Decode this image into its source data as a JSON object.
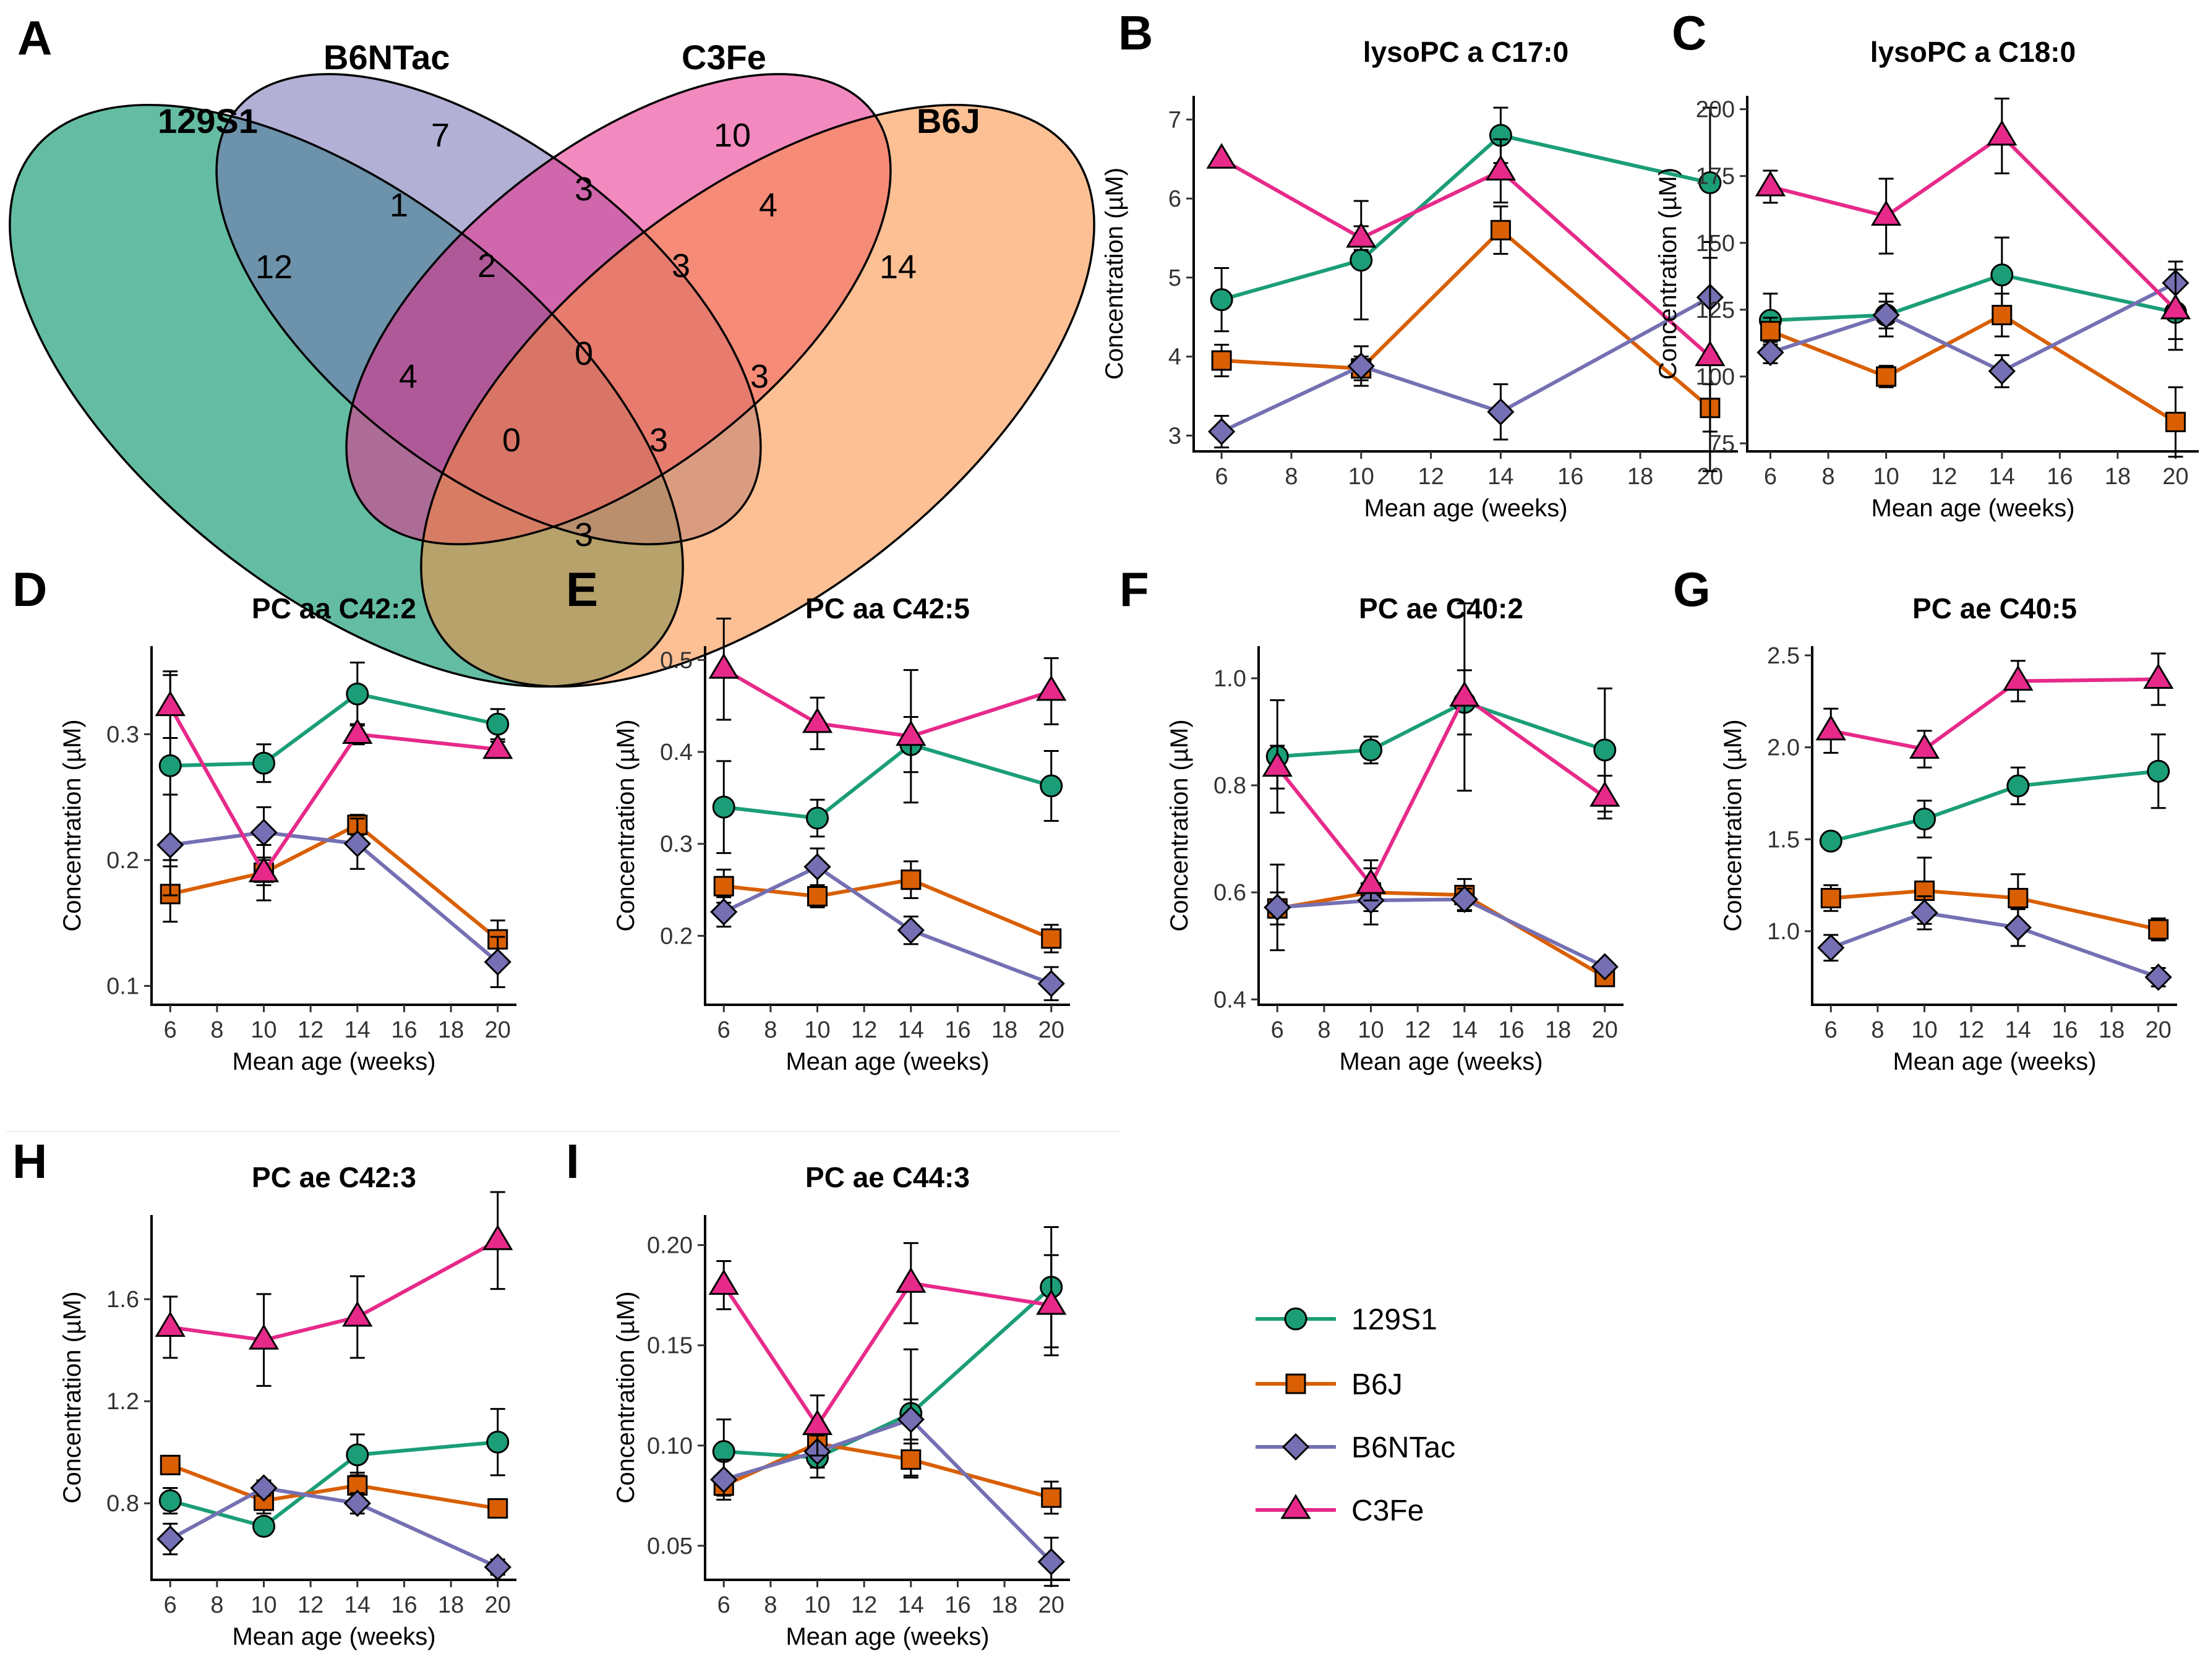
{
  "strains": [
    {
      "id": "129S1",
      "name": "129S1",
      "color": "#1b9e77",
      "shape": "circle"
    },
    {
      "id": "B6J",
      "name": "B6J",
      "color": "#d95f02",
      "shape": "square"
    },
    {
      "id": "B6NTac",
      "name": "B6NTac",
      "color": "#7570b3",
      "shape": "diamond"
    },
    {
      "id": "C3Fe",
      "name": "C3Fe",
      "color": "#e7298a",
      "shape": "triangle"
    }
  ],
  "venn": {
    "letter": "A",
    "sets": [
      {
        "name": "129S1",
        "color": "#1b9e77"
      },
      {
        "name": "B6NTac",
        "color": "#7570b3"
      },
      {
        "name": "C3Fe",
        "color": "#e7298a"
      },
      {
        "name": "B6J",
        "color": "#f98d3d"
      }
    ],
    "regions": {
      "a": "12",
      "n": "7",
      "c": "10",
      "j": "14",
      "an": "1",
      "nc": "3",
      "cj": "4",
      "aj": "3",
      "ac": "4",
      "nj": "3",
      "anc": "2",
      "ncj": "3",
      "acj": "0",
      "anj": "3",
      "ancj": "0"
    }
  },
  "chart_data": [
    {
      "letter": "B",
      "type": "line",
      "title": "lysoPC a C17:0",
      "xlabel": "Mean age (weeks)",
      "ylabel": "Concentration (µM)",
      "x": [
        6,
        10,
        14,
        20
      ],
      "xlim": [
        5.2,
        20.8
      ],
      "xticks": [
        6,
        8,
        10,
        12,
        14,
        16,
        18,
        20
      ],
      "ylim": [
        2.8,
        7.3
      ],
      "yticks": [
        3,
        4,
        5,
        6,
        7
      ],
      "ytick_labels": [
        "3",
        "4",
        "5",
        "6",
        "7"
      ],
      "series": [
        {
          "name": "129S1",
          "values": [
            4.72,
            5.22,
            6.8,
            6.2
          ],
          "err": [
            0.4,
            0.75,
            0.35,
            0.95
          ]
        },
        {
          "name": "B6J",
          "values": [
            3.95,
            3.85,
            5.6,
            3.35
          ],
          "err": [
            0.2,
            0.15,
            0.3,
            0.3
          ]
        },
        {
          "name": "B6NTac",
          "values": [
            3.05,
            3.88,
            3.3,
            4.75
          ],
          "err": [
            0.2,
            0.25,
            0.35,
            0.7
          ]
        },
        {
          "name": "C3Fe",
          "values": [
            6.5,
            5.5,
            6.35,
            4.0
          ],
          "err": [
            0.0,
            0.15,
            0.4,
            1.45
          ]
        }
      ]
    },
    {
      "letter": "C",
      "type": "line",
      "title": "lysoPC a C18:0",
      "xlabel": "Mean age (weeks)",
      "ylabel": "Concentration (µM)",
      "x": [
        6,
        10,
        14,
        20
      ],
      "xlim": [
        5.2,
        20.8
      ],
      "xticks": [
        6,
        8,
        10,
        12,
        14,
        16,
        18,
        20
      ],
      "ylim": [
        72,
        205
      ],
      "yticks": [
        75,
        100,
        125,
        150,
        175,
        200
      ],
      "ytick_labels": [
        "75",
        "100",
        "125",
        "150",
        "175",
        "200"
      ],
      "series": [
        {
          "name": "129S1",
          "values": [
            121,
            123,
            138,
            124
          ],
          "err": [
            10,
            5,
            14,
            10
          ]
        },
        {
          "name": "B6J",
          "values": [
            117,
            100,
            123,
            83
          ],
          "err": [
            5,
            4,
            8,
            13
          ]
        },
        {
          "name": "B6NTac",
          "values": [
            109,
            123,
            102,
            135
          ],
          "err": [
            4,
            8,
            6,
            8
          ]
        },
        {
          "name": "C3Fe",
          "values": [
            171,
            160,
            190,
            125
          ],
          "err": [
            6,
            14,
            14,
            15
          ]
        }
      ]
    },
    {
      "letter": "D",
      "type": "line",
      "title": "PC aa C42:2",
      "xlabel": "Mean age (weeks)",
      "ylabel": "Concentration (µM)",
      "x": [
        6,
        10,
        14,
        20
      ],
      "xlim": [
        5.2,
        20.8
      ],
      "xticks": [
        6,
        8,
        10,
        12,
        14,
        16,
        18,
        20
      ],
      "ylim": [
        0.085,
        0.37
      ],
      "yticks": [
        0.1,
        0.2,
        0.3
      ],
      "ytick_labels": [
        "0.1",
        "0.2",
        "0.3"
      ],
      "series": [
        {
          "name": "129S1",
          "values": [
            0.275,
            0.277,
            0.332,
            0.308
          ],
          "err": [
            0.075,
            0.015,
            0.025,
            0.012
          ]
        },
        {
          "name": "B6J",
          "values": [
            0.173,
            0.19,
            0.228,
            0.137
          ],
          "err": [
            0.022,
            0.01,
            0.008,
            0.015
          ]
        },
        {
          "name": "B6NTac",
          "values": [
            0.212,
            0.222,
            0.213,
            0.119
          ],
          "err": [
            0.04,
            0.02,
            0.02,
            0.02
          ]
        },
        {
          "name": "C3Fe",
          "values": [
            0.322,
            0.19,
            0.3,
            0.288
          ],
          "err": [
            0.025,
            0.022,
            0.008,
            0.006
          ]
        }
      ]
    },
    {
      "letter": "E",
      "type": "line",
      "title": "PC aa C42:5",
      "xlabel": "Mean age (weeks)",
      "ylabel": "Concentration (µM)",
      "x": [
        6,
        10,
        14,
        20
      ],
      "xlim": [
        5.2,
        20.8
      ],
      "xticks": [
        6,
        8,
        10,
        12,
        14,
        16,
        18,
        20
      ],
      "ylim": [
        0.125,
        0.515
      ],
      "yticks": [
        0.2,
        0.3,
        0.4,
        0.5
      ],
      "ytick_labels": [
        "0.2",
        "0.3",
        "0.4",
        "0.5"
      ],
      "series": [
        {
          "name": "129S1",
          "values": [
            0.34,
            0.328,
            0.408,
            0.363
          ],
          "err": [
            0.05,
            0.02,
            0.03,
            0.038
          ]
        },
        {
          "name": "B6J",
          "values": [
            0.254,
            0.243,
            0.261,
            0.197
          ],
          "err": [
            0.018,
            0.012,
            0.02,
            0.015
          ]
        },
        {
          "name": "B6NTac",
          "values": [
            0.226,
            0.275,
            0.206,
            0.148
          ],
          "err": [
            0.016,
            0.02,
            0.015,
            0.018
          ]
        },
        {
          "name": "C3Fe",
          "values": [
            0.49,
            0.431,
            0.417,
            0.466
          ],
          "err": [
            0.055,
            0.028,
            0.072,
            0.036
          ]
        }
      ]
    },
    {
      "letter": "F",
      "type": "line",
      "title": "PC ae C40:2",
      "xlabel": "Mean age (weeks)",
      "ylabel": "Concentration (µM)",
      "x": [
        6,
        10,
        14,
        20
      ],
      "xlim": [
        5.2,
        20.8
      ],
      "xticks": [
        6,
        8,
        10,
        12,
        14,
        16,
        18,
        20
      ],
      "ylim": [
        0.39,
        1.06
      ],
      "yticks": [
        0.4,
        0.6,
        0.8,
        1.0
      ],
      "ytick_labels": [
        "0.4",
        "0.6",
        "0.8",
        "1.0"
      ],
      "series": [
        {
          "name": "129S1",
          "values": [
            0.854,
            0.866,
            0.955,
            0.866
          ],
          "err": [
            0.105,
            0.025,
            0.06,
            0.115
          ]
        },
        {
          "name": "B6J",
          "values": [
            0.57,
            0.6,
            0.595,
            0.442
          ],
          "err": [
            0.03,
            0.06,
            0.03,
            0.016
          ]
        },
        {
          "name": "B6NTac",
          "values": [
            0.572,
            0.585,
            0.587,
            0.461
          ],
          "err": [
            0.08,
            0.02,
            0.02,
            0.008
          ]
        },
        {
          "name": "C3Fe",
          "values": [
            0.834,
            0.615,
            0.965,
            0.778
          ],
          "err": [
            0.04,
            0.03,
            0.175,
            0.04
          ]
        }
      ]
    },
    {
      "letter": "G",
      "type": "line",
      "title": "PC ae C40:5",
      "xlabel": "Mean age (weeks)",
      "ylabel": "Concentration (µM)",
      "x": [
        6,
        10,
        14,
        20
      ],
      "xlim": [
        5.2,
        20.8
      ],
      "xticks": [
        6,
        8,
        10,
        12,
        14,
        16,
        18,
        20
      ],
      "ylim": [
        0.6,
        2.55
      ],
      "yticks": [
        1.0,
        1.5,
        2.0,
        2.5
      ],
      "ytick_labels": [
        "1.0",
        "1.5",
        "2.0",
        "2.5"
      ],
      "series": [
        {
          "name": "129S1",
          "values": [
            1.49,
            1.61,
            1.79,
            1.87
          ],
          "err": [
            0.03,
            0.1,
            0.1,
            0.2
          ]
        },
        {
          "name": "B6J",
          "values": [
            1.18,
            1.22,
            1.18,
            1.01
          ],
          "err": [
            0.07,
            0.18,
            0.13,
            0.06
          ]
        },
        {
          "name": "B6NTac",
          "values": [
            0.91,
            1.1,
            1.02,
            0.75
          ],
          "err": [
            0.07,
            0.09,
            0.1,
            0.05
          ]
        },
        {
          "name": "C3Fe",
          "values": [
            2.09,
            1.99,
            2.36,
            2.37
          ],
          "err": [
            0.12,
            0.1,
            0.11,
            0.14
          ]
        }
      ]
    },
    {
      "letter": "H",
      "type": "line",
      "title": "PC ae C42:3",
      "xlabel": "Mean age (weeks)",
      "ylabel": "Concentration (µM)",
      "x": [
        6,
        10,
        14,
        20
      ],
      "xlim": [
        5.2,
        20.8
      ],
      "xticks": [
        6,
        8,
        10,
        12,
        14,
        16,
        18,
        20
      ],
      "ylim": [
        0.5,
        1.93
      ],
      "yticks": [
        0.8,
        1.2,
        1.6
      ],
      "ytick_labels": [
        "0.8",
        "1.2",
        "1.6"
      ],
      "series": [
        {
          "name": "129S1",
          "values": [
            0.81,
            0.71,
            0.99,
            1.04
          ],
          "err": [
            0.05,
            0.02,
            0.08,
            0.13
          ]
        },
        {
          "name": "B6J",
          "values": [
            0.95,
            0.81,
            0.87,
            0.78
          ],
          "err": [
            0.03,
            0.05,
            0.05,
            0.03
          ]
        },
        {
          "name": "B6NTac",
          "values": [
            0.66,
            0.86,
            0.8,
            0.55
          ],
          "err": [
            0.06,
            0.03,
            0.04,
            0.03
          ]
        },
        {
          "name": "C3Fe",
          "values": [
            1.49,
            1.44,
            1.53,
            1.83
          ],
          "err": [
            0.12,
            0.18,
            0.16,
            0.19
          ]
        }
      ]
    },
    {
      "letter": "I",
      "type": "line",
      "title": "PC ae C44:3",
      "xlabel": "Mean age (weeks)",
      "ylabel": "Concentration (µM)",
      "x": [
        6,
        10,
        14,
        20
      ],
      "xlim": [
        5.2,
        20.8
      ],
      "xticks": [
        6,
        8,
        10,
        12,
        14,
        16,
        18,
        20
      ],
      "ylim": [
        0.033,
        0.215
      ],
      "yticks": [
        0.05,
        0.1,
        0.15,
        0.2
      ],
      "ytick_labels": [
        "0.05",
        "0.10",
        "0.15",
        "0.20"
      ],
      "series": [
        {
          "name": "129S1",
          "values": [
            0.097,
            0.094,
            0.116,
            0.179
          ],
          "err": [
            0.016,
            0.01,
            0.032,
            0.03
          ]
        },
        {
          "name": "B6J",
          "values": [
            0.08,
            0.101,
            0.093,
            0.074
          ],
          "err": [
            0.005,
            0.006,
            0.008,
            0.008
          ]
        },
        {
          "name": "B6NTac",
          "values": [
            0.083,
            0.097,
            0.113,
            0.042
          ],
          "err": [
            0.01,
            0.008,
            0.01,
            0.012
          ]
        },
        {
          "name": "C3Fe",
          "values": [
            0.18,
            0.11,
            0.181,
            0.17
          ],
          "err": [
            0.012,
            0.015,
            0.02,
            0.025
          ]
        }
      ]
    }
  ]
}
